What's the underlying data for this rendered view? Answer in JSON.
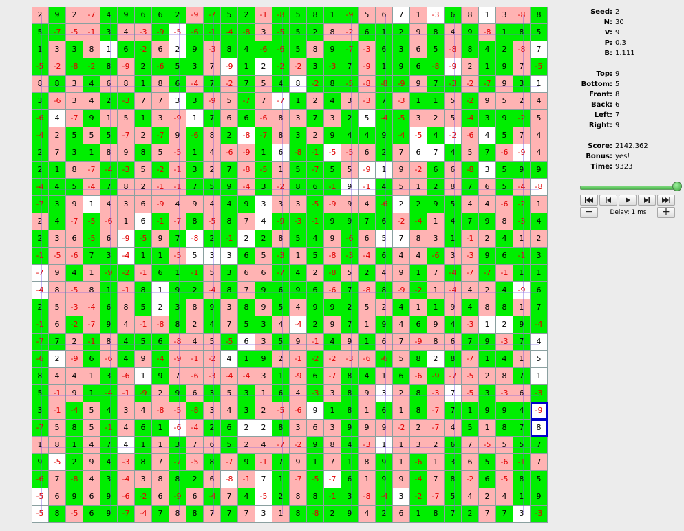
{
  "stats": {
    "seed_label": "Seed:",
    "seed": "2",
    "n_label": "N:",
    "n": "30",
    "v_label": "V:",
    "v": "9",
    "p_label": "P:",
    "p": "0.3",
    "b_label": "B:",
    "b": "1.111",
    "top_label": "Top:",
    "top": "9",
    "bottom_label": "Bottom:",
    "bottom": "5",
    "front_label": "Front:",
    "front": "8",
    "back_label": "Back:",
    "back": "6",
    "left_label": "Left:",
    "left": "7",
    "right_label": "Right:",
    "right": "9",
    "score_label": "Score:",
    "score": "2142.362",
    "bonus_label": "Bonus:",
    "bonus": "yes!",
    "time_label": "Time:",
    "time": "9323"
  },
  "controls": {
    "first_icon": "skip-to-start-icon",
    "prev_icon": "step-back-icon",
    "play_icon": "play-icon",
    "next_icon": "step-forward-icon",
    "last_icon": "skip-to-end-icon",
    "minus_label": "−",
    "plus_label": "+",
    "delay_label": "Delay: 1 ms",
    "slider_position": 1.0
  },
  "colors": {
    "green": "#00ee00",
    "pink": "#ffb3b3",
    "white": "#ffffff",
    "negative_text": "#e00000",
    "path_line": "#7a5ce0",
    "highlight": "#0000cc"
  },
  "grid": {
    "size": 30,
    "highlighted": [
      [
        23,
        29
      ],
      [
        24,
        29
      ]
    ],
    "rows": [
      [
        "2",
        "9",
        "2",
        "-7",
        "4",
        "9",
        "6",
        "6",
        "2",
        "-9",
        "-7",
        "5",
        "2",
        "-1",
        "-8",
        "5",
        "8",
        "1",
        "-9",
        "5",
        "6",
        "7",
        "1",
        "-3",
        "6",
        "8",
        "1",
        "3",
        "-8",
        "8"
      ],
      [
        "5",
        "-7",
        "-5",
        "-1",
        "3",
        "4",
        "-3",
        "-9",
        "-5",
        "-6",
        "-1",
        "-4",
        "-8",
        "3",
        "-5",
        "5",
        "2",
        "8",
        "-2",
        "6",
        "1",
        "2",
        "9",
        "8",
        "4",
        "9",
        "-8",
        "1",
        "8",
        "5"
      ],
      [
        "1",
        "3",
        "3",
        "8",
        "1",
        "6",
        "-2",
        "6",
        "2",
        "9",
        "-3",
        "8",
        "4",
        "-6",
        "-6",
        "5",
        "8",
        "9",
        "-7",
        "-3",
        "6",
        "3",
        "6",
        "5",
        "-8",
        "8",
        "4",
        "2",
        "-8",
        "7"
      ],
      [
        "-5",
        "-2",
        "-8",
        "-2",
        "8",
        "-9",
        "2",
        "-6",
        "5",
        "3",
        "7",
        "-9",
        "1",
        "2",
        "-2",
        "-2",
        "3",
        "-3",
        "7",
        "-9",
        "1",
        "9",
        "6",
        "-8",
        "-9",
        "2",
        "1",
        "9",
        "7",
        "-5"
      ],
      [
        "8",
        "8",
        "3",
        "4",
        "6",
        "8",
        "1",
        "8",
        "6",
        "-4",
        "7",
        "-2",
        "7",
        "5",
        "4",
        "8",
        "-2",
        "8",
        "-5",
        "-8",
        "-8",
        "-9",
        "9",
        "7",
        "-3",
        "-2",
        "-7",
        "9",
        "3",
        "1"
      ],
      [
        "3",
        "-6",
        "3",
        "4",
        "2",
        "-3",
        "7",
        "7",
        "3",
        "3",
        "-9",
        "5",
        "-7",
        "7",
        "-7",
        "1",
        "2",
        "4",
        "3",
        "-3",
        "7",
        "-3",
        "1",
        "1",
        "5",
        "-2",
        "9",
        "5",
        "2",
        "4"
      ],
      [
        "-6",
        "4",
        "-7",
        "9",
        "1",
        "5",
        "1",
        "3",
        "-9",
        "1",
        "7",
        "6",
        "6",
        "-6",
        "8",
        "3",
        "7",
        "3",
        "2",
        "5",
        "-4",
        "-5",
        "3",
        "2",
        "5",
        "-4",
        "3",
        "9",
        "-2",
        "5"
      ],
      [
        "-4",
        "2",
        "5",
        "5",
        "5",
        "-7",
        "2",
        "-7",
        "9",
        "-6",
        "8",
        "2",
        "-8",
        "-7",
        "8",
        "3",
        "2",
        "9",
        "4",
        "4",
        "9",
        "-4",
        "-5",
        "4",
        "-2",
        "-6",
        "4",
        "5",
        "7",
        "4"
      ],
      [
        "2",
        "7",
        "3",
        "1",
        "8",
        "9",
        "8",
        "5",
        "-5",
        "1",
        "4",
        "-6",
        "-9",
        "1",
        "6",
        "-8",
        "-1",
        "-5",
        "-5",
        "6",
        "2",
        "7",
        "6",
        "7",
        "4",
        "5",
        "7",
        "-6",
        "-9",
        "4"
      ],
      [
        "2",
        "1",
        "8",
        "-7",
        "-4",
        "-3",
        "5",
        "-2",
        "-1",
        "3",
        "2",
        "7",
        "-8",
        "-5",
        "1",
        "5",
        "-7",
        "5",
        "5",
        "-9",
        "1",
        "9",
        "-2",
        "6",
        "6",
        "-8",
        "3",
        "5",
        "9",
        "9"
      ],
      [
        "-4",
        "4",
        "5",
        "-4",
        "7",
        "8",
        "2",
        "-1",
        "-1",
        "7",
        "5",
        "9",
        "-4",
        "3",
        "-2",
        "8",
        "6",
        "-1",
        "9",
        "-1",
        "4",
        "5",
        "1",
        "2",
        "8",
        "7",
        "6",
        "5",
        "-4",
        "-8"
      ],
      [
        "-7",
        "3",
        "9",
        "1",
        "4",
        "3",
        "6",
        "-9",
        "4",
        "9",
        "4",
        "4",
        "9",
        "3",
        "3",
        "3",
        "-5",
        "-9",
        "9",
        "4",
        "-6",
        "2",
        "2",
        "9",
        "5",
        "4",
        "4",
        "-6",
        "-2",
        "1"
      ],
      [
        "2",
        "4",
        "-7",
        "-5",
        "-6",
        "1",
        "6",
        "-1",
        "-7",
        "8",
        "-5",
        "8",
        "7",
        "4",
        "-9",
        "-3",
        "-1",
        "9",
        "9",
        "7",
        "6",
        "-2",
        "-4",
        "1",
        "4",
        "7",
        "9",
        "8",
        "-3",
        "4"
      ],
      [
        "2",
        "3",
        "6",
        "-5",
        "6",
        "-9",
        "-5",
        "9",
        "7",
        "-8",
        "2",
        "-1",
        "2",
        "2",
        "8",
        "5",
        "4",
        "9",
        "-6",
        "6",
        "5",
        "7",
        "8",
        "3",
        "1",
        "-1",
        "2",
        "4",
        "1",
        "2"
      ],
      [
        "-1",
        "-5",
        "-6",
        "7",
        "3",
        "-4",
        "1",
        "1",
        "-5",
        "5",
        "3",
        "3",
        "6",
        "5",
        "-3",
        "1",
        "5",
        "-8",
        "-3",
        "-4",
        "6",
        "4",
        "4",
        "-6",
        "3",
        "-3",
        "9",
        "6",
        "-1",
        "3"
      ],
      [
        "-7",
        "9",
        "4",
        "1",
        "-9",
        "-2",
        "-1",
        "6",
        "1",
        "-1",
        "5",
        "3",
        "6",
        "6",
        "-7",
        "4",
        "2",
        "-8",
        "5",
        "2",
        "4",
        "9",
        "1",
        "7",
        "-4",
        "-7",
        "-7",
        "-1",
        "1",
        "1"
      ],
      [
        "-4",
        "8",
        "-5",
        "8",
        "1",
        "-1",
        "8",
        "1",
        "9",
        "2",
        "-4",
        "8",
        "7",
        "9",
        "6",
        "9",
        "6",
        "-6",
        "7",
        "-8",
        "8",
        "-9",
        "-2",
        "1",
        "-4",
        "4",
        "2",
        "4",
        "-9",
        "6"
      ],
      [
        "2",
        "5",
        "-3",
        "-4",
        "6",
        "8",
        "5",
        "2",
        "3",
        "8",
        "9",
        "3",
        "8",
        "9",
        "5",
        "4",
        "9",
        "9",
        "2",
        "5",
        "2",
        "4",
        "1",
        "1",
        "9",
        "4",
        "8",
        "8",
        "1",
        "7"
      ],
      [
        "-1",
        "6",
        "-2",
        "-7",
        "9",
        "4",
        "-1",
        "-8",
        "8",
        "2",
        "4",
        "7",
        "5",
        "3",
        "4",
        "-4",
        "2",
        "9",
        "7",
        "1",
        "9",
        "4",
        "6",
        "9",
        "4",
        "-3",
        "1",
        "2",
        "9",
        "-4"
      ],
      [
        "-7",
        "7",
        "2",
        "-1",
        "8",
        "4",
        "5",
        "6",
        "-8",
        "4",
        "5",
        "-5",
        "6",
        "3",
        "5",
        "9",
        "-1",
        "4",
        "9",
        "1",
        "6",
        "7",
        "-9",
        "8",
        "6",
        "7",
        "9",
        "-3",
        "7",
        "4"
      ],
      [
        "-6",
        "2",
        "-9",
        "6",
        "-6",
        "4",
        "9",
        "-4",
        "-9",
        "-1",
        "-2",
        "4",
        "1",
        "9",
        "2",
        "-1",
        "-2",
        "-2",
        "-3",
        "-6",
        "-6",
        "5",
        "8",
        "2",
        "8",
        "-7",
        "1",
        "4",
        "1",
        "5"
      ],
      [
        "8",
        "4",
        "4",
        "1",
        "3",
        "-6",
        "1",
        "9",
        "7",
        "-6",
        "-3",
        "-4",
        "-4",
        "3",
        "1",
        "-9",
        "6",
        "-7",
        "8",
        "4",
        "1",
        "6",
        "-6",
        "-9",
        "-7",
        "-5",
        "2",
        "8",
        "7",
        "1"
      ],
      [
        "5",
        "-1",
        "9",
        "1",
        "-4",
        "-1",
        "-9",
        "2",
        "9",
        "6",
        "3",
        "5",
        "3",
        "1",
        "6",
        "4",
        "-3",
        "3",
        "8",
        "9",
        "3",
        "2",
        "8",
        "-3",
        "7",
        "-5",
        "3",
        "-3",
        "6",
        "-3"
      ],
      [
        "3",
        "-1",
        "-4",
        "5",
        "4",
        "3",
        "4",
        "-8",
        "-5",
        "-8",
        "3",
        "4",
        "3",
        "2",
        "-5",
        "-6",
        "9",
        "1",
        "8",
        "1",
        "6",
        "1",
        "8",
        "-7",
        "7",
        "1",
        "9",
        "9",
        "4",
        "-9"
      ],
      [
        "-7",
        "5",
        "8",
        "5",
        "-1",
        "4",
        "6",
        "1",
        "-6",
        "-4",
        "2",
        "6",
        "2",
        "2",
        "8",
        "3",
        "6",
        "3",
        "9",
        "9",
        "9",
        "-2",
        "2",
        "-7",
        "4",
        "5",
        "1",
        "8",
        "7",
        "8"
      ],
      [
        "1",
        "8",
        "1",
        "4",
        "7",
        "4",
        "1",
        "1",
        "3",
        "7",
        "6",
        "5",
        "2",
        "4",
        "-7",
        "-2",
        "9",
        "8",
        "4",
        "-3",
        "1",
        "1",
        "3",
        "2",
        "6",
        "7",
        "-5",
        "5",
        "5",
        "7"
      ],
      [
        "9",
        "-5",
        "2",
        "9",
        "4",
        "-3",
        "8",
        "7",
        "-7",
        "-5",
        "8",
        "-7",
        "9",
        "-1",
        "7",
        "9",
        "1",
        "7",
        "1",
        "8",
        "9",
        "1",
        "-6",
        "1",
        "3",
        "6",
        "5",
        "-6",
        "-1",
        "7"
      ],
      [
        "-6",
        "7",
        "-8",
        "4",
        "3",
        "-4",
        "3",
        "8",
        "8",
        "2",
        "6",
        "-8",
        "-1",
        "7",
        "1",
        "-7",
        "-5",
        "-7",
        "6",
        "1",
        "9",
        "9",
        "-4",
        "7",
        "8",
        "-2",
        "6",
        "-5",
        "8",
        "5"
      ],
      [
        "-5",
        "6",
        "9",
        "6",
        "9",
        "-6",
        "-2",
        "6",
        "-9",
        "6",
        "-4",
        "7",
        "4",
        "-5",
        "2",
        "8",
        "8",
        "-1",
        "3",
        "-8",
        "-4",
        "3",
        "-2",
        "-7",
        "5",
        "4",
        "2",
        "4",
        "1",
        "9"
      ],
      [
        "-5",
        "8",
        "-5",
        "6",
        "9",
        "-7",
        "-4",
        "7",
        "8",
        "8",
        "7",
        "7",
        "7",
        "3",
        "1",
        "8",
        "-8",
        "2",
        "9",
        "4",
        "2",
        "6",
        "1",
        "8",
        "7",
        "2",
        "7",
        "7",
        "3",
        "-3"
      ]
    ],
    "colors": [
      "pgppgggggpgggpgggggppwpwgpwppg",
      "ggppgppgwggggpgggppgggpgpgpggg",
      "gpgpwggpwgpgggggpggpggpgpgggpw",
      "gpgggpggggpwgwgpgggpggggwpggpg",
      "pgpgppgpgpgpgpgwgggpggpggpgpgw",
      "gpppggppwgppgpwgpgppgpggpgpppp",
      "gwpgppgppwgpgpppgpgwggpppggggp",
      "gpgpgppgpgpgwgpgpgggggwgwpwgpp",
      "gpggppgppgpppgwggwppgpwwgpgpwp",
      "ggppggpgpgpgpgpgggpwwppgpgwggg",
      "gggpgppppgggpgpgggwwgppgpgpgpw",
      "ggpwpppppppggwppgpppgwgggpppgp",
      "pgpgppwgpgpgpwgggggggpgpgggpgg",
      "gppgpwgpgwggwgpggpgpwwppgppgpp",
      "gppggwggpwwwgpgpgpgpgppgppgggg",
      "wpgpggpgggpgppggpgpgppgpgpgpgg",
      "wpppgpgwggpgpggggpgpgpgppppgwg",
      "gpppgpgwgpgpgpgpgggppgpgpgpgpg",
      "gpgpgpppgpgpggpwgpgpgpgpgpwwgg",
      "ggpgpgggpppgwpgppgpgpppppggpgw",
      "gwpgpgpgpppwggppgpppgpgwgpggpw",
      "gpppgpwgppppppgpgpggpgpgppppgw",
      "gppggpgpgpgpgpgpgpgpwpgpwpgppg",
      "gpgpgppppgppgpppwggpgpgpgggggw",
      "gpgpgpggwpggwwgpppgppppppgpggw",
      "ppgpgwgpgppgppppgpgpwpppgpppgg",
      "gwgpgpgpgpgpgpgpgpgpgpgpgpgpgp",
      "gpgpgpppggpwpwgpgwgpgpgpgpgpgg",
      "wpgpgpgpgpgpgwgpgggpgwgpgpppgg",
      "wgpgggpgpgpgpwpggggpgpggggpgwg"
    ]
  }
}
